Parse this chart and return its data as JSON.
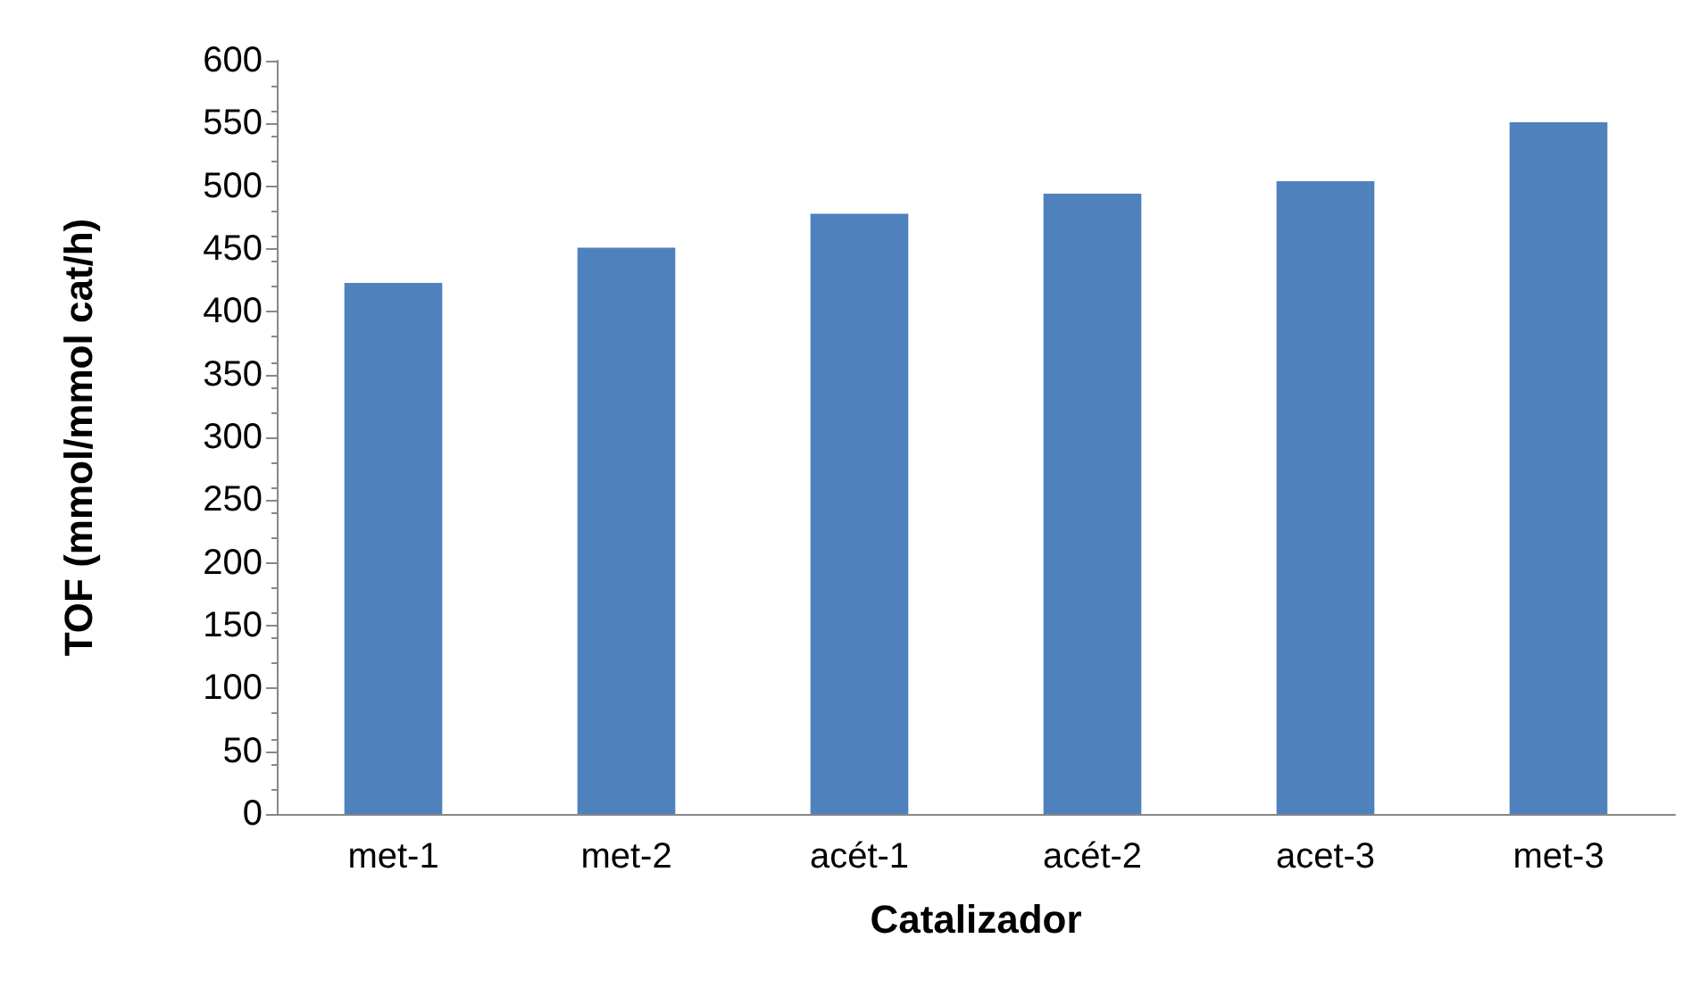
{
  "chart_data": {
    "type": "bar",
    "xlabel": "Catalizador",
    "ylabel": "TOF (mmol/mmol cat/h)",
    "categories": [
      "met-1",
      "met-2",
      "acét-1",
      "acét-2",
      "acet-3",
      "met-3"
    ],
    "values": [
      423,
      451,
      478,
      494,
      504,
      551
    ],
    "color": "#4f81bd",
    "ylim": [
      0,
      600
    ],
    "yticks": [
      0,
      50,
      100,
      150,
      200,
      250,
      300,
      350,
      400,
      450,
      500,
      550,
      600
    ],
    "grid": false
  }
}
